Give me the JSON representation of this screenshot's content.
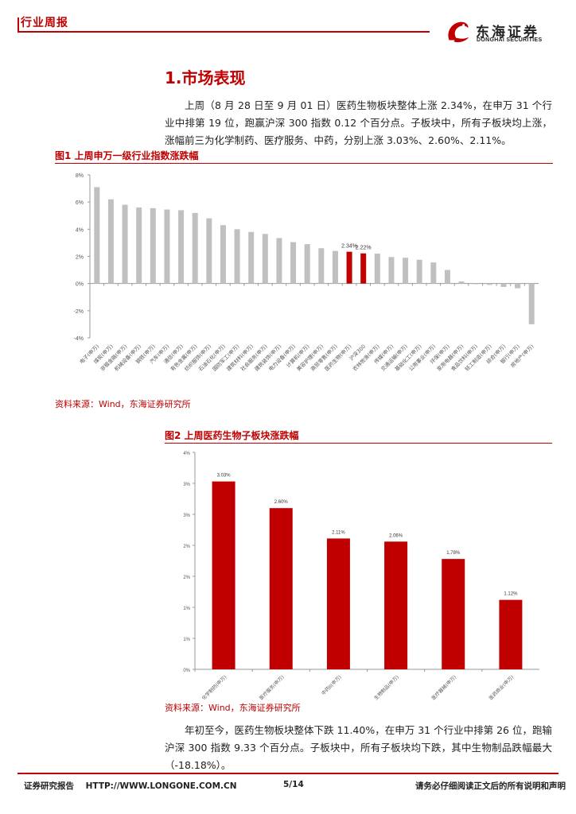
{
  "header": {
    "report_type": "行业周报",
    "logo_cn": "东海证券",
    "logo_en": "DONGHAI SECURITIES"
  },
  "section": {
    "title": "1.市场表现",
    "para1": "上周（8 月 28 日至 9 月 01 日）医药生物板块整体上涨 2.34%，在申万 31 个行业中排第 19 位，跑赢沪深 300 指数 0.12 个百分点。子板块中，所有子板块均上涨，涨幅前三为化学制药、医疗服务、中药，分别上涨 3.03%、2.60%、2.11%。",
    "para2": "年初至今，医药生物板块整体下跌 11.40%，在申万 31 个行业中排第 26 位，跑输沪深 300 指数 9.33 个百分点。子板块中，所有子板块均下跌，其中生物制品跌幅最大（-18.18%）。"
  },
  "figure1": {
    "title": "图1  上周申万一级行业指数涨跌幅",
    "source": "资料来源：Wind，东海证券研究所"
  },
  "figure2": {
    "title": "图2  上周医药生物子板块涨跌幅",
    "source": "资料来源：Wind，东海证券研究所"
  },
  "chart_data": [
    {
      "type": "bar",
      "categories": [
        "电子(申万)",
        "煤炭(申万)",
        "非银金融(申万)",
        "机械设备(申万)",
        "钢铁(申万)",
        "汽车(申万)",
        "通信(申万)",
        "有色金属(申万)",
        "纺织服饰(申万)",
        "石油石化(申万)",
        "国防军工(申万)",
        "建筑材料(申万)",
        "社会服务(申万)",
        "建筑装饰(申万)",
        "电力设备(申万)",
        "计算机(申万)",
        "美容护理(申万)",
        "商贸零售(申万)",
        "医药生物(申万)",
        "沪深300",
        "农林牧渔(申万)",
        "传媒(申万)",
        "交通运输(申万)",
        "基础化工(申万)",
        "公用事业(申万)",
        "环保(申万)",
        "家用电器(申万)",
        "食品饮料(申万)",
        "轻工制造(申万)",
        "综合(申万)",
        "银行(申万)",
        "房地产(申万)"
      ],
      "values": [
        7.1,
        6.2,
        5.8,
        5.6,
        5.55,
        5.45,
        5.4,
        5.2,
        4.8,
        4.3,
        4.0,
        3.8,
        3.65,
        3.35,
        3.05,
        2.9,
        2.6,
        2.4,
        2.34,
        2.22,
        2.2,
        1.95,
        1.9,
        1.75,
        1.55,
        1.0,
        0.15,
        -0.05,
        -0.1,
        -0.25,
        -0.35,
        -3.0
      ],
      "highlight": [
        "医药生物(申万)",
        "沪深300"
      ],
      "data_labels": {
        "医药生物(申万)": "2.34%",
        "沪深300": "2.22%"
      },
      "yticks": [
        "8%",
        "6%",
        "4%",
        "2%",
        "0%",
        "-2%",
        "-4%"
      ],
      "ylim": [
        -4,
        8
      ],
      "bar_color": "#c0c0c0",
      "highlight_color": "#c00000",
      "grid": false
    },
    {
      "type": "bar",
      "categories": [
        "化学制药(申万)",
        "医疗服务(申万)",
        "中药II(申万)",
        "生物制品(申万)",
        "医疗器械(申万)",
        "医药商业(申万)"
      ],
      "values": [
        3.03,
        2.6,
        2.11,
        2.06,
        1.78,
        1.12
      ],
      "data_labels": [
        "3.03%",
        "2.60%",
        "2.11%",
        "2.06%",
        "1.78%",
        "1.12%"
      ],
      "yticks": [
        "4%",
        "3%",
        "3%",
        "2%",
        "2%",
        "1%",
        "1%",
        "0%"
      ],
      "ylim": [
        0,
        3.5
      ],
      "bar_color": "#c00000",
      "grid": false
    }
  ],
  "footer": {
    "left": "证券研究报告    HTTP://WWW.LONGONE.COM.CN",
    "page": "5/14",
    "right": "请务必仔细阅读正文后的所有说明和声明"
  }
}
